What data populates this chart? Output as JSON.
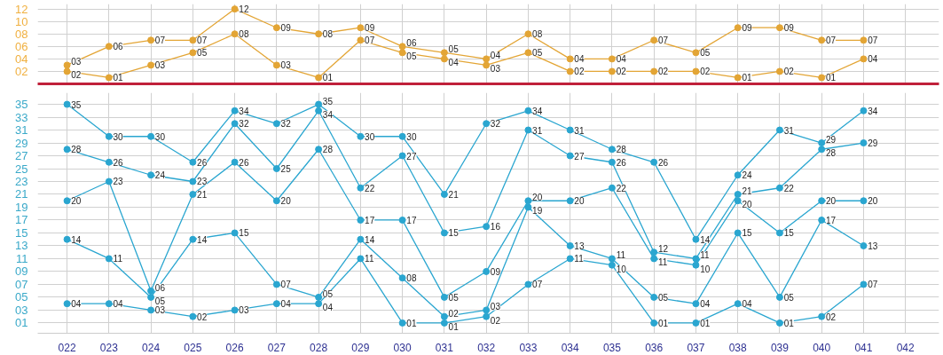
{
  "chart_data": [
    {
      "type": "line",
      "categories": [
        "022",
        "023",
        "024",
        "025",
        "026",
        "027",
        "028",
        "029",
        "030",
        "031",
        "032",
        "033",
        "034",
        "035",
        "036",
        "037",
        "038",
        "039",
        "040",
        "041",
        "042"
      ],
      "ylim": [
        0,
        12.8
      ],
      "yticks": [
        {
          "value": 2,
          "label": "02"
        },
        {
          "value": 4,
          "label": "04"
        },
        {
          "value": 6,
          "label": "06"
        },
        {
          "value": 8,
          "label": "08"
        },
        {
          "value": 10,
          "label": "10"
        },
        {
          "value": 12,
          "label": "12"
        }
      ],
      "tick_labels": "y",
      "grid": true,
      "marker": "circle",
      "line_style": "solid",
      "series": [
        {
          "color": "#e3a535",
          "values": [
            2,
            1,
            3,
            5,
            8,
            3,
            1,
            7,
            5,
            4,
            3,
            5,
            2,
            2,
            2,
            2,
            1,
            2,
            1,
            4,
            null
          ],
          "value_labels": [
            "02",
            "01",
            "03",
            "05",
            "08",
            "03",
            "01",
            "07",
            "05",
            "04",
            "03",
            "05",
            "02",
            "02",
            "02",
            "02",
            "01",
            "02",
            "01",
            "04",
            null
          ]
        },
        {
          "color": "#e3a535",
          "values": [
            3,
            6,
            7,
            7,
            12,
            9,
            8,
            9,
            6,
            5,
            4,
            8,
            4,
            4,
            7,
            5,
            9,
            9,
            7,
            7,
            null
          ],
          "value_labels": [
            "03",
            "06",
            "07",
            "07",
            "12",
            "09",
            "08",
            "09",
            "06",
            "05",
            "04",
            "08",
            "04",
            "04",
            "07",
            "05",
            "09",
            "09",
            "07",
            "07",
            null
          ]
        }
      ]
    },
    {
      "type": "line",
      "categories": [
        "022",
        "023",
        "024",
        "025",
        "026",
        "027",
        "028",
        "029",
        "030",
        "031",
        "032",
        "033",
        "034",
        "035",
        "036",
        "037",
        "038",
        "039",
        "040",
        "041",
        "042"
      ],
      "ylim": [
        -0.6,
        36.8
      ],
      "yticks": [
        {
          "value": 1,
          "label": "01"
        },
        {
          "value": 3,
          "label": "03"
        },
        {
          "value": 5,
          "label": "05"
        },
        {
          "value": 7,
          "label": "07"
        },
        {
          "value": 9,
          "label": "09"
        },
        11,
        13,
        15,
        17,
        19,
        21,
        23,
        25,
        27,
        29,
        31,
        33,
        35
      ],
      "grid": true,
      "marker": "circle",
      "line_style": "solid",
      "series": [
        {
          "color": "#2aa6d0",
          "values": [
            4,
            4,
            3,
            2,
            3,
            4,
            4,
            11,
            1,
            1,
            2,
            7,
            11,
            10,
            1,
            1,
            4,
            1,
            2,
            7,
            null
          ],
          "value_labels": [
            "04",
            "04",
            "03",
            "02",
            "03",
            "04",
            "04",
            "11",
            "01",
            "01",
            "02",
            "07",
            "11",
            "10",
            "01",
            "01",
            "04",
            "01",
            "02",
            "07",
            null
          ]
        },
        {
          "color": "#2aa6d0",
          "values": [
            14,
            11,
            5,
            14,
            15,
            7,
            5,
            14,
            8,
            2,
            3,
            19,
            13,
            11,
            5,
            4,
            15,
            5,
            17,
            13,
            null
          ],
          "value_labels": [
            "14",
            "11",
            "05",
            "14",
            "15",
            "07",
            "05",
            "14",
            "08",
            "02",
            "03",
            "19",
            "13",
            "11",
            "05",
            "04",
            "15",
            "05",
            "17",
            "13",
            null
          ]
        },
        {
          "color": "#2aa6d0",
          "values": [
            20,
            23,
            6,
            21,
            26,
            20,
            28,
            17,
            17,
            5,
            9,
            20,
            20,
            22,
            11,
            10,
            20,
            15,
            20,
            20,
            null
          ],
          "value_labels": [
            "20",
            "23",
            "06",
            "21",
            "26",
            "20",
            "28",
            "17",
            "17",
            "05",
            "09",
            "20",
            "20",
            "22",
            "11",
            "10",
            "20",
            "15",
            "20",
            "20",
            null
          ]
        },
        {
          "color": "#2aa6d0",
          "values": [
            28,
            26,
            24,
            23,
            32,
            25,
            34,
            22,
            27,
            15,
            16,
            31,
            27,
            26,
            12,
            11,
            21,
            22,
            28,
            29,
            null
          ],
          "value_labels": [
            "28",
            "26",
            "24",
            "23",
            "32",
            "25",
            "34",
            "22",
            "27",
            "15",
            "16",
            "31",
            "27",
            "26",
            "12",
            "11",
            "21",
            "22",
            "28",
            "29",
            null
          ]
        },
        {
          "color": "#2aa6d0",
          "values": [
            35,
            30,
            30,
            26,
            34,
            32,
            35,
            30,
            30,
            21,
            32,
            34,
            31,
            28,
            26,
            14,
            24,
            31,
            29,
            34,
            null
          ],
          "value_labels": [
            "35",
            "30",
            "30",
            "26",
            "34",
            "32",
            "35",
            "30",
            "30",
            "21",
            "32",
            "34",
            "31",
            "28",
            "26",
            "14",
            "24",
            "31",
            "29",
            "34",
            null
          ]
        }
      ]
    }
  ]
}
